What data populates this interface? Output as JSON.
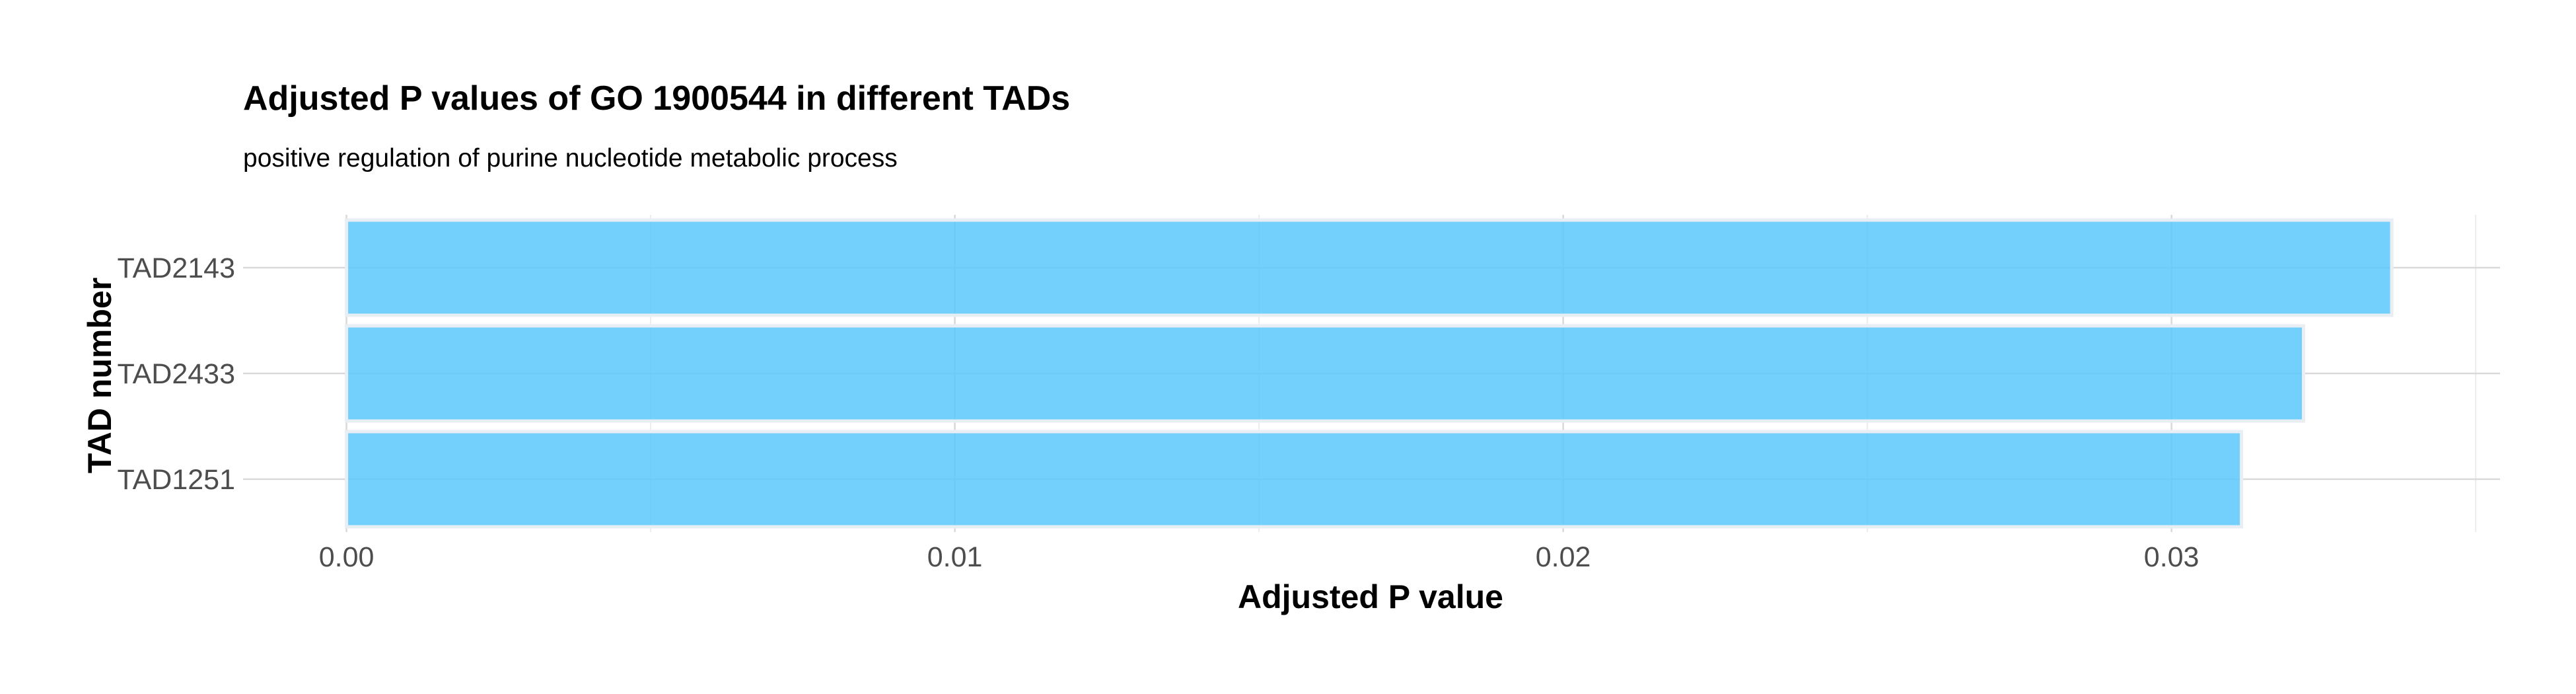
{
  "chart_data": {
    "type": "bar",
    "orientation": "horizontal",
    "title": "Adjusted P values of GO 1900544 in different TADs",
    "subtitle": "positive regulation of purine nucleotide metabolic process",
    "xlabel": "Adjusted P value",
    "ylabel": "TAD number",
    "categories": [
      "TAD2143",
      "TAD2433",
      "TAD1251"
    ],
    "values": [
      0.03362,
      0.03217,
      0.03115
    ],
    "xlim": [
      -0.0017,
      0.0354
    ],
    "xticks": [
      0.0,
      0.01,
      0.02,
      0.03
    ],
    "xtick_labels": [
      "0.00",
      "0.01",
      "0.02",
      "0.03"
    ],
    "grid": true,
    "legend": "none",
    "bar_color": "#5bc8fb"
  }
}
